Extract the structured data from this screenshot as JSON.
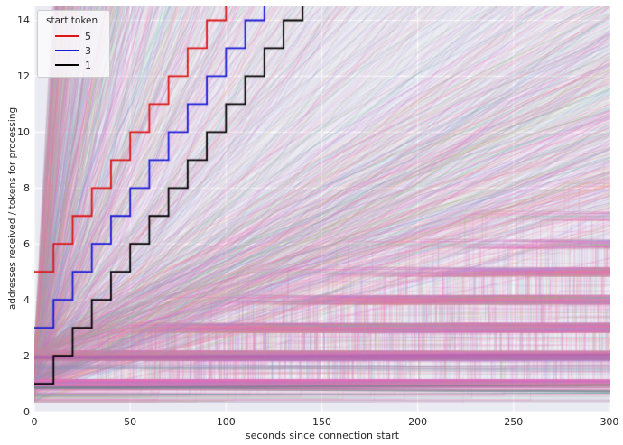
{
  "figure": {
    "background": "#ffffff",
    "plot_background": "#eaeaf2",
    "grid_color": "#ffffff",
    "text_color": "#262626"
  },
  "chart_data": {
    "type": "line",
    "title": "",
    "xlabel": "seconds since connection start",
    "ylabel": "addresses received / tokens for processing",
    "xlim": [
      0,
      300.5
    ],
    "ylim": [
      0,
      14.5
    ],
    "xticks": [
      0,
      50,
      100,
      150,
      200,
      250,
      300
    ],
    "yticks": [
      0,
      2,
      4,
      6,
      8,
      10,
      12,
      14
    ],
    "grid": true,
    "legend": {
      "title": "start token",
      "position": "upper left",
      "entries": [
        {
          "label": "5",
          "color": "#dd1515"
        },
        {
          "label": "3",
          "color": "#1a1ad6"
        },
        {
          "label": "1",
          "color": "#000000"
        }
      ]
    },
    "series": [
      {
        "name": "5",
        "color": "#dd1515",
        "start_value": 5,
        "step_size": 1,
        "step_interval_s": 10,
        "style": "step-post",
        "line_width": 1.8
      },
      {
        "name": "3",
        "color": "#1a1ad6",
        "start_value": 3,
        "step_size": 1,
        "step_interval_s": 10,
        "style": "step-post",
        "line_width": 1.8
      },
      {
        "name": "1",
        "color": "#000000",
        "start_value": 1,
        "step_size": 1,
        "step_interval_s": 10,
        "style": "step-post",
        "line_width": 1.8
      }
    ],
    "background_ensemble": {
      "description": "Thousands of semi-transparent per-connection step lines starting at x=0 around y=1-2 and fanning toward the upper right; shallow slopes form a saturated pink/magenta wash near the bottom left, steeper lines mix teal, green, periwinkle, purple, orange and tan across the upper half",
      "seed": 1337,
      "count": 1500,
      "step_interval_range_s": [
        0.8,
        500
      ],
      "alpha_range": [
        0.13,
        0.27
      ],
      "line_width": 0.9,
      "start_values": [
        1,
        2
      ],
      "dense_fan": {
        "count": 850,
        "step_interval_range_s": [
          22,
          520
        ],
        "alpha_range": [
          0.18,
          0.32
        ]
      },
      "palette": [
        {
          "color": "#f268b1",
          "weight": 18,
          "family": "pink"
        },
        {
          "color": "#ee7ec4",
          "weight": 10,
          "family": "pink"
        },
        {
          "color": "#e263d8",
          "weight": 6,
          "family": "pink"
        },
        {
          "color": "#f08a9b",
          "weight": 5,
          "family": "pink"
        },
        {
          "color": "#b88ce0",
          "weight": 7,
          "family": "purple"
        },
        {
          "color": "#9d7fd4",
          "weight": 6,
          "family": "purple"
        },
        {
          "color": "#8795dc",
          "weight": 8,
          "family": "blue"
        },
        {
          "color": "#7fb3e0",
          "weight": 6,
          "family": "blue"
        },
        {
          "color": "#7e9cc4",
          "weight": 4,
          "family": "blue"
        },
        {
          "color": "#5cbcb0",
          "weight": 7,
          "family": "teal"
        },
        {
          "color": "#63bd8a",
          "weight": 5,
          "family": "green"
        },
        {
          "color": "#88c46a",
          "weight": 5,
          "family": "green"
        },
        {
          "color": "#a9b653",
          "weight": 4,
          "family": "olive"
        },
        {
          "color": "#cbb36a",
          "weight": 4,
          "family": "tan"
        },
        {
          "color": "#eda367",
          "weight": 5,
          "family": "orange"
        },
        {
          "color": "#ec8570",
          "weight": 4,
          "family": "coral"
        },
        {
          "color": "#a8a8b8",
          "weight": 3,
          "family": "gray"
        }
      ],
      "flat_bundles": [
        {
          "y": 1.95,
          "count": 22,
          "color": "#b565b5",
          "alpha": 0.2,
          "width": 1.3
        },
        {
          "y": 1.6,
          "count": 10,
          "color": "#9090b8",
          "alpha": 0.22,
          "width": 1.2
        },
        {
          "y": 0.85,
          "count": 3,
          "color": "#73808c",
          "alpha": 0.75,
          "width": 1.6
        },
        {
          "y": 0.72,
          "count": 1,
          "color": "#e88ab8",
          "alpha": 0.75,
          "width": 1.2
        },
        {
          "y": 0.5,
          "count": 1,
          "color": "#6aa8a8",
          "alpha": 0.85,
          "width": 1.2
        }
      ]
    }
  }
}
